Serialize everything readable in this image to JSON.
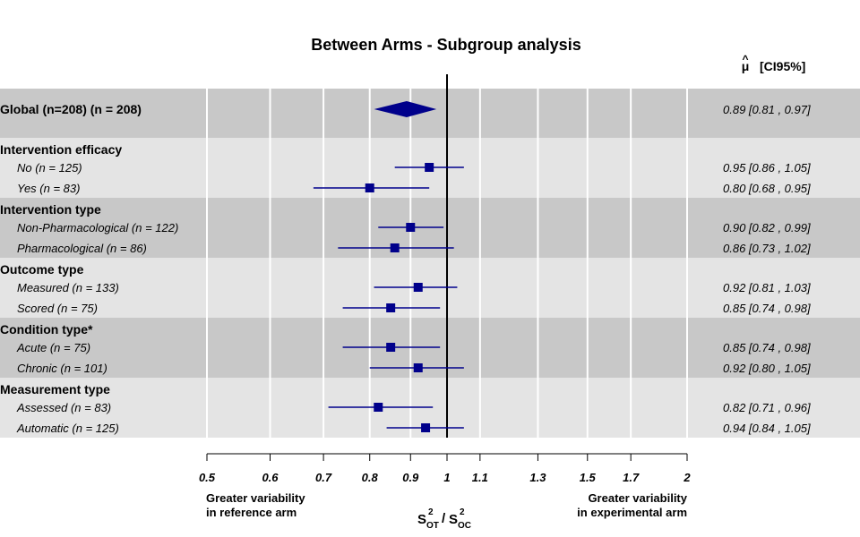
{
  "chart_data": {
    "type": "forest",
    "title": "Between Arms - Subgroup analysis",
    "estimate_header": {
      "mu": "μ",
      "hat": "^",
      "ci": "[CI95%]"
    },
    "x_scale": "log",
    "xlim": [
      0.5,
      2
    ],
    "reference_line": 1,
    "x_ticks": [
      "0.5",
      "0.6",
      "0.7",
      "0.8",
      "0.9",
      "1",
      "1.1",
      "1.3",
      "1.5",
      "1.7",
      "2"
    ],
    "xlabel": {
      "base": "S",
      "sup1": "2",
      "sub1": "OT",
      "sep": "/",
      "sup2": "2",
      "sub2": "OC"
    },
    "left_note": [
      "Greater variability",
      "in reference arm"
    ],
    "right_note": [
      "Greater variability",
      "in experimental arm"
    ],
    "global": {
      "label": "Global (n=208) (n = 208)",
      "est": 0.89,
      "lo": 0.81,
      "hi": 0.97,
      "text": "0.89  [0.81 , 0.97]"
    },
    "groups": [
      {
        "label": "Intervention efficacy",
        "rows": [
          {
            "label": "No (n = 125)",
            "est": 0.95,
            "lo": 0.86,
            "hi": 1.05,
            "text": "0.95  [0.86 , 1.05]"
          },
          {
            "label": "Yes (n = 83)",
            "est": 0.8,
            "lo": 0.68,
            "hi": 0.95,
            "text": "0.80  [0.68 , 0.95]"
          }
        ]
      },
      {
        "label": "Intervention type",
        "rows": [
          {
            "label": "Non-Pharmacological (n = 122)",
            "est": 0.9,
            "lo": 0.82,
            "hi": 0.99,
            "text": "0.90  [0.82 , 0.99]"
          },
          {
            "label": "Pharmacological (n = 86)",
            "est": 0.86,
            "lo": 0.73,
            "hi": 1.02,
            "text": "0.86  [0.73 , 1.02]"
          }
        ]
      },
      {
        "label": "Outcome type",
        "rows": [
          {
            "label": "Measured (n = 133)",
            "est": 0.92,
            "lo": 0.81,
            "hi": 1.03,
            "text": "0.92  [0.81 , 1.03]"
          },
          {
            "label": "Scored (n = 75)",
            "est": 0.85,
            "lo": 0.74,
            "hi": 0.98,
            "text": "0.85  [0.74 , 0.98]"
          }
        ]
      },
      {
        "label": "Condition type*",
        "rows": [
          {
            "label": "Acute (n = 75)",
            "est": 0.85,
            "lo": 0.74,
            "hi": 0.98,
            "text": "0.85  [0.74 , 0.98]"
          },
          {
            "label": "Chronic (n = 101)",
            "est": 0.92,
            "lo": 0.8,
            "hi": 1.05,
            "text": "0.92  [0.80 , 1.05]"
          }
        ]
      },
      {
        "label": "Measurement type",
        "rows": [
          {
            "label": "Assessed (n = 83)",
            "est": 0.82,
            "lo": 0.71,
            "hi": 0.96,
            "text": "0.82  [0.71 , 0.96]"
          },
          {
            "label": "Automatic (n = 125)",
            "est": 0.94,
            "lo": 0.84,
            "hi": 1.05,
            "text": "0.94  [0.84 , 1.05]"
          }
        ]
      }
    ],
    "colors": {
      "band_dark": "#c8c8c8",
      "band_light": "#e4e4e4",
      "marker": "#00008b",
      "grid": "#ffffff",
      "ref_line": "#000000"
    }
  }
}
